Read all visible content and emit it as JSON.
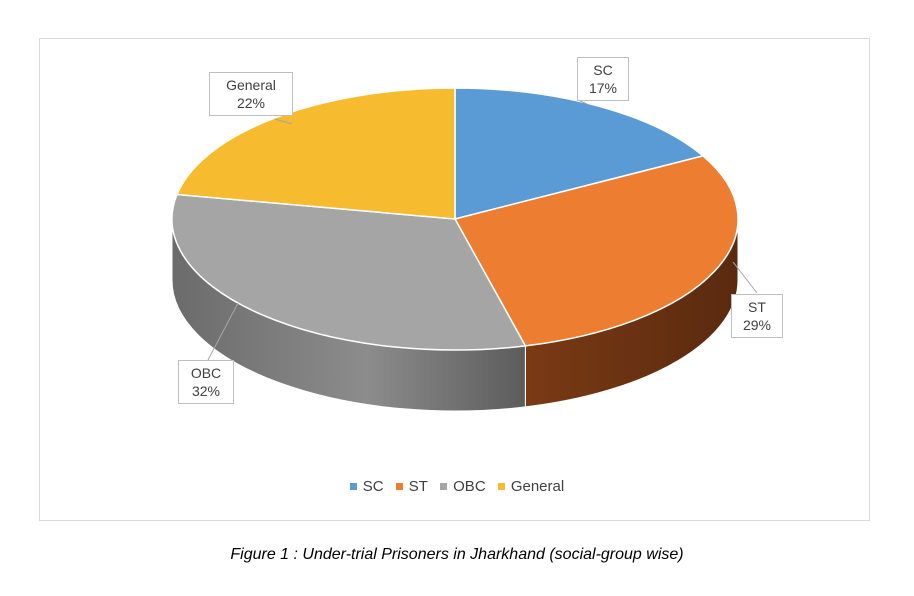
{
  "chart_data": {
    "type": "pie",
    "variant": "3d",
    "title": "",
    "categories": [
      "SC",
      "ST",
      "OBC",
      "General"
    ],
    "values": [
      17,
      29,
      32,
      22
    ],
    "value_labels": [
      "17%",
      "29%",
      "32%",
      "22%"
    ],
    "colors": [
      "#5b9bd5",
      "#ed7d31",
      "#a5a5a5",
      "#f6bb2f"
    ],
    "legend_position": "bottom",
    "data_labels": "callout"
  },
  "caption": "Figure 1 : Under-trial Prisoners in Jharkhand (social-group wise)"
}
